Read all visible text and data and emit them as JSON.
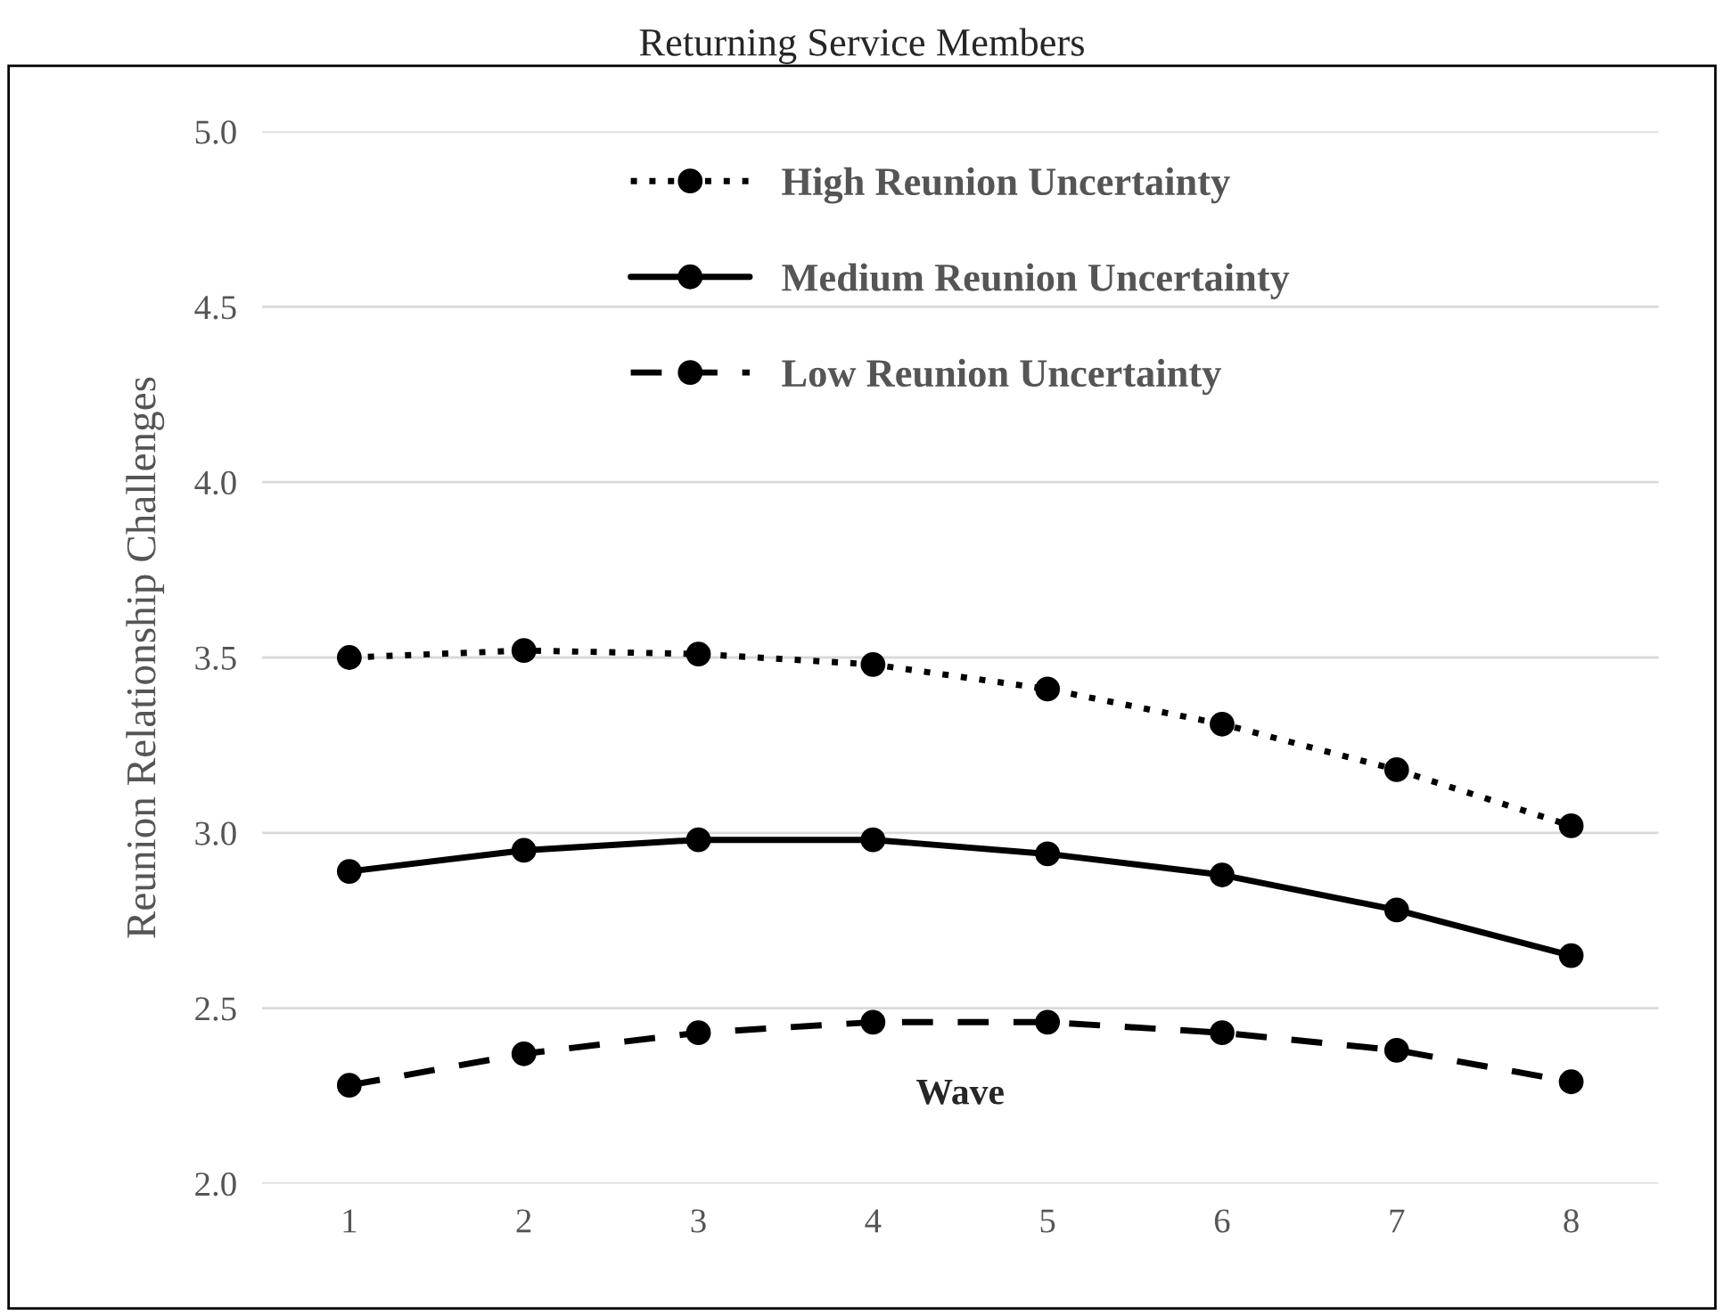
{
  "chart_data": {
    "type": "line",
    "title": "Returning Service Members",
    "xlabel": "Wave",
    "ylabel": "Reunion Relationship Challenges",
    "x": [
      1,
      2,
      3,
      4,
      5,
      6,
      7,
      8
    ],
    "xlim": [
      0.5,
      8.5
    ],
    "xticks": [
      1,
      2,
      3,
      4,
      5,
      6,
      7,
      8
    ],
    "ylim": [
      2.0,
      5.0
    ],
    "yticks": [
      {
        "value": 2.0,
        "label": "2.0"
      },
      {
        "value": 2.5,
        "label": "2.5"
      },
      {
        "value": 3.0,
        "label": "3.0"
      },
      {
        "value": 3.5,
        "label": "3.5"
      },
      {
        "value": 4.0,
        "label": "4.0"
      },
      {
        "value": 4.5,
        "label": "4.5"
      },
      {
        "value": 5.0,
        "label": "5.0"
      }
    ],
    "grid": "y",
    "legend": "top",
    "marker": "circle",
    "series": [
      {
        "name": "High Reunion Uncertainty",
        "color": "#000000",
        "line_style": "dotted",
        "values": [
          3.5,
          3.52,
          3.51,
          3.48,
          3.41,
          3.31,
          3.18,
          3.02
        ]
      },
      {
        "name": "Medium Reunion Uncertainty",
        "color": "#000000",
        "line_style": "solid",
        "values": [
          2.89,
          2.95,
          2.98,
          2.98,
          2.94,
          2.88,
          2.78,
          2.65
        ]
      },
      {
        "name": "Low Reunion Uncertainty",
        "color": "#000000",
        "line_style": "dashed",
        "values": [
          2.28,
          2.37,
          2.43,
          2.46,
          2.46,
          2.43,
          2.38,
          2.29
        ]
      }
    ]
  }
}
